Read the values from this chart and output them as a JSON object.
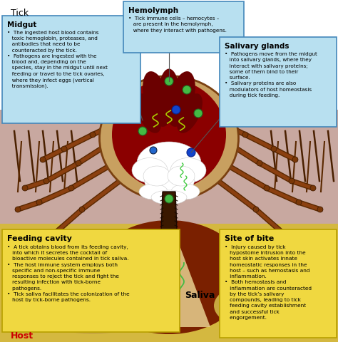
{
  "title": "Tick",
  "midgut_title": "Midgut",
  "midgut_text": "•  The ingested host blood contains\n   toxic hemoglobin, proteases, and\n   antibodies that need to be\n   counteracted by the tick.\n•  Pathogens are ingested with the\n   blood and, depending on the\n   species, stay in the midgut until next\n   feeding or travel to the tick ovaries,\n   where they infect eggs (vertical\n   transmission).",
  "hemolymph_title": "Hemolymph",
  "hemolymph_text": "•  Tick immune cells – hemocytes –\n   are present in the hemolymph,\n   where they interact with pathogens.",
  "salivary_title": "Salivary glands",
  "salivary_text": "•  Pathogens move from the midgut\n   into salivary glands, where they\n   interact with salivary proteins;\n   some of them bind to their\n   surface.\n•  Salivary proteins are also\n   modulators of host homeostasis\n   during tick feeding.",
  "feeding_title": "Feeding cavity",
  "feeding_text": "•  A tick obtains blood from its feeding cavity,\n   into which it secretes the cocktail of\n   bioactive molecules contained in tick saliva.\n•  The host immune system employs both\n   specific and non-specific immune\n   responses to reject the tick and fight the\n   resulting infection with tick-borne\n   pathogens.\n•  Tick saliva facilitates the colonization of the\n   host by tick-borne pathogens.",
  "site_title": "Site of bite",
  "site_text": "•  Injury caused by tick\n   hypostome intrusion into the\n   host skin activates innate\n   homeostatic responses in the\n   host – such as hemostasis and\n   inflammation.\n•  Both hemostasis and\n   inflammation are counteracted\n   by the tick’s salivary\n   compounds, leading to tick\n   feeding cavity establishment\n   and successful tick\n   engorgement.",
  "host_label": "Host",
  "saliva_label": "Saliva",
  "fig_width": 4.74,
  "fig_height": 4.81,
  "dpi": 100
}
